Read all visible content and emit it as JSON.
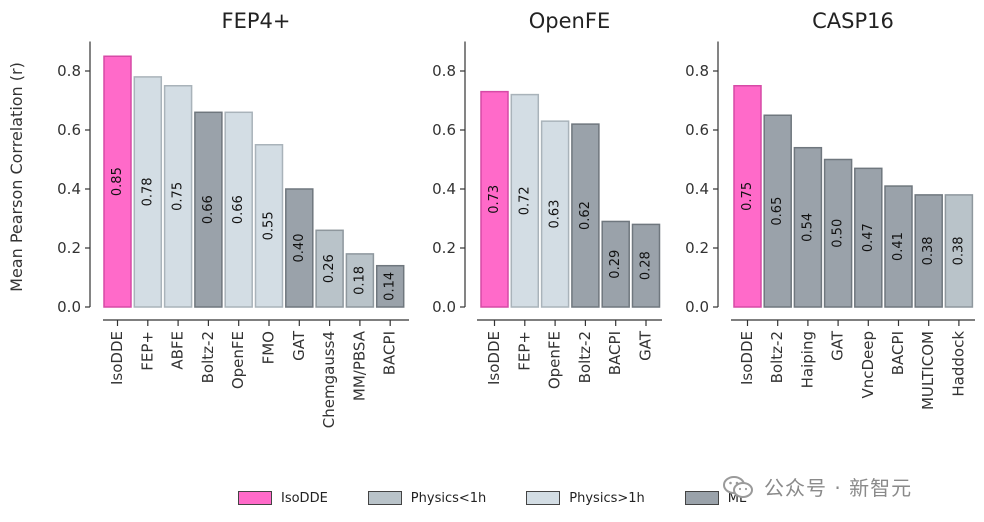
{
  "colors": {
    "IsoDDE": "#ff6ac9",
    "Physics<1h": "#b9c3c9",
    "Physics>1h": "#d3dde4",
    "ML": "#9aa2aa"
  },
  "y_axis_label": "Mean Pearson Correlation (r)",
  "chart_data": [
    {
      "type": "bar",
      "title": "FEP4+",
      "ylabel": "Mean Pearson Correlation (r)",
      "ylim": [
        0,
        0.9
      ],
      "yticks": [
        0.0,
        0.2,
        0.4,
        0.6,
        0.8
      ],
      "ytick_labels": [
        "0.0",
        "0.2",
        "0.4",
        "0.6",
        "0.8"
      ],
      "categories": [
        "IsoDDE",
        "FEP+",
        "ABFE",
        "Boltz-2",
        "OpenFE",
        "FMO",
        "GAT",
        "Chemgauss4",
        "MM/PBSA",
        "BACPI"
      ],
      "values": [
        0.85,
        0.78,
        0.75,
        0.66,
        0.66,
        0.55,
        0.4,
        0.26,
        0.18,
        0.14
      ],
      "labels": [
        "0.85",
        "0.78",
        "0.75",
        "0.66",
        "0.66",
        "0.55",
        "0.40",
        "0.26",
        "0.18",
        "0.14"
      ],
      "groups": [
        "IsoDDE",
        "Physics>1h",
        "Physics>1h",
        "ML",
        "Physics>1h",
        "Physics>1h",
        "ML",
        "Physics<1h",
        "Physics<1h",
        "ML"
      ]
    },
    {
      "type": "bar",
      "title": "OpenFE",
      "ylim": [
        0,
        0.9
      ],
      "yticks": [
        0.0,
        0.2,
        0.4,
        0.6,
        0.8
      ],
      "ytick_labels": [
        "0.0",
        "0.2",
        "0.4",
        "0.6",
        "0.8"
      ],
      "categories": [
        "IsoDDE",
        "FEP+",
        "OpenFE",
        "Boltz-2",
        "BACPI",
        "GAT"
      ],
      "values": [
        0.73,
        0.72,
        0.63,
        0.62,
        0.29,
        0.28
      ],
      "labels": [
        "0.73",
        "0.72",
        "0.63",
        "0.62",
        "0.29",
        "0.28"
      ],
      "groups": [
        "IsoDDE",
        "Physics>1h",
        "Physics>1h",
        "ML",
        "ML",
        "ML"
      ]
    },
    {
      "type": "bar",
      "title": "CASP16",
      "ylim": [
        0,
        0.9
      ],
      "yticks": [
        0.0,
        0.2,
        0.4,
        0.6,
        0.8
      ],
      "ytick_labels": [
        "0.0",
        "0.2",
        "0.4",
        "0.6",
        "0.8"
      ],
      "categories": [
        "IsoDDE",
        "Boltz-2",
        "Haiping",
        "GAT",
        "VncDeep",
        "BACPI",
        "MULTICOM",
        "Haddock"
      ],
      "values": [
        0.75,
        0.65,
        0.54,
        0.5,
        0.47,
        0.41,
        0.38,
        0.38
      ],
      "labels": [
        "0.75",
        "0.65",
        "0.54",
        "0.50",
        "0.47",
        "0.41",
        "0.38",
        "0.38"
      ],
      "groups": [
        "IsoDDE",
        "ML",
        "ML",
        "ML",
        "ML",
        "ML",
        "ML",
        "Physics<1h"
      ]
    }
  ],
  "legend": [
    {
      "label": "IsoDDE",
      "color": "#ff6ac9"
    },
    {
      "label": "Physics<1h",
      "color": "#b9c3c9"
    },
    {
      "label": "Physics>1h",
      "color": "#d3dde4"
    },
    {
      "label": "ML",
      "color": "#9aa2aa"
    }
  ],
  "watermark": {
    "text": "公众号 · 新智元"
  }
}
